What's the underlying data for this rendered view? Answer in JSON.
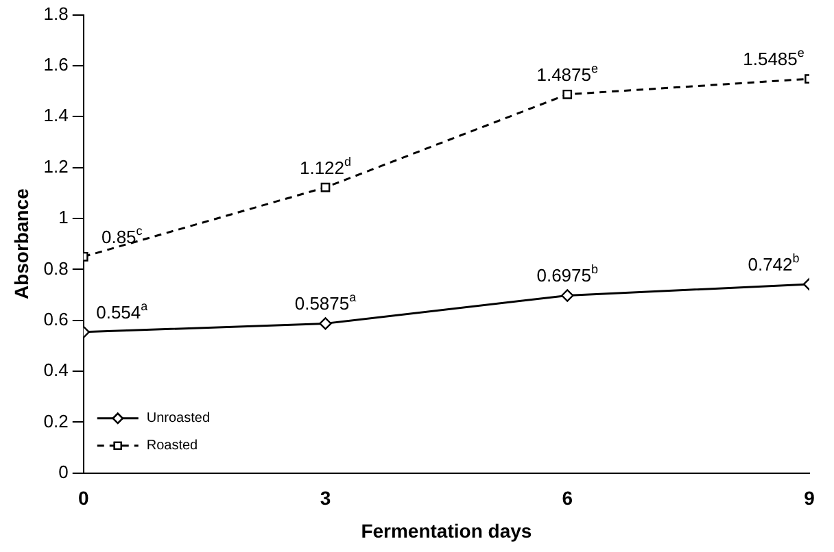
{
  "chart_data": {
    "type": "line",
    "xlabel": "Fermentation days",
    "ylabel": "Absorbance",
    "x": [
      0,
      3,
      6,
      9
    ],
    "xlim": [
      0,
      9
    ],
    "xticks": [
      0,
      3,
      6,
      9
    ],
    "ylim": [
      0,
      1.8
    ],
    "yticks": [
      0,
      0.2,
      0.4,
      0.6,
      0.8,
      1,
      1.2,
      1.4,
      1.6,
      1.8
    ],
    "grid": false,
    "legend": "bottom left",
    "series": [
      {
        "name": "Unroasted",
        "color": "#000000",
        "marker": "diamond",
        "line_style": "solid",
        "values": [
          0.554,
          0.5875,
          0.6975,
          0.742
        ],
        "value_labels": [
          "0.554$^{a}$",
          "0.5875$^{a}$",
          "0.6975$^{b}$",
          "0.742$^{b}$"
        ]
      },
      {
        "name": "Roasted",
        "color": "#000000",
        "marker": "square",
        "line_style": "dashed",
        "values": [
          0.85,
          1.122,
          1.4875,
          1.5485
        ],
        "value_labels": [
          "0.85$^{c}$",
          "1.122$^{d}$",
          "1.4875$^{e}$",
          "1.5485$^{e}$"
        ]
      }
    ]
  }
}
